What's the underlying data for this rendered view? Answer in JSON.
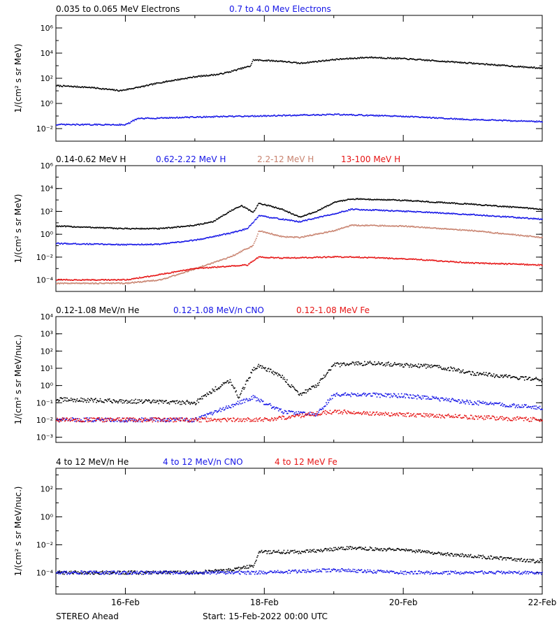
{
  "colors": {
    "black": "#000000",
    "blue": "#1414e6",
    "tan": "#c8826e",
    "red": "#e61414"
  },
  "footer": {
    "left": "STEREO Ahead",
    "center": "Start: 15-Feb-2022 00:00 UTC"
  },
  "x_axis": {
    "range_days": [
      "2022-02-15",
      "2022-02-22"
    ],
    "ticks": [
      {
        "date": "2022-02-16",
        "label": "16-Feb"
      },
      {
        "date": "2022-02-18",
        "label": "18-Feb"
      },
      {
        "date": "2022-02-20",
        "label": "20-Feb"
      },
      {
        "date": "2022-02-22",
        "label": "22-Feb"
      }
    ]
  },
  "chart_data": [
    {
      "type": "scatter",
      "yscale": "log",
      "ylabel": "1/(cm² s sr MeV)",
      "ylim": [
        0.001,
        10000000
      ],
      "yticks": [
        {
          "value": 0.01,
          "label": "10⁻²"
        },
        {
          "value": 1,
          "label": "10⁰"
        },
        {
          "value": 100,
          "label": "10²"
        },
        {
          "value": 10000,
          "label": "10⁴"
        },
        {
          "value": 1000000,
          "label": "10⁶"
        }
      ],
      "series": [
        {
          "name": "0.035 to 0.065 MeV Electrons",
          "color": "black",
          "points": [
            [
              "2022-02-15",
              25
            ],
            [
              "2022-02-15T12:00",
              18
            ],
            [
              "2022-02-15T22:00",
              10
            ],
            [
              "2022-02-16T06:00",
              22
            ],
            [
              "2022-02-16T12:00",
              45
            ],
            [
              "2022-02-17T00:00",
              130
            ],
            [
              "2022-02-17T08:00",
              200
            ],
            [
              "2022-02-17T12:00",
              320
            ],
            [
              "2022-02-17T16:00",
              600
            ],
            [
              "2022-02-17T19:00",
              900
            ],
            [
              "2022-02-17T20:00",
              2800
            ],
            [
              "2022-02-18T06:00",
              2200
            ],
            [
              "2022-02-18T12:00",
              1500
            ],
            [
              "2022-02-19T00:00",
              3000
            ],
            [
              "2022-02-19T12:00",
              4500
            ],
            [
              "2022-02-20T00:00",
              3500
            ],
            [
              "2022-02-21T00:00",
              1500
            ],
            [
              "2022-02-22T00:00",
              600
            ]
          ]
        },
        {
          "name": "0.7 to 4.0 Mev Electrons",
          "color": "blue",
          "points": [
            [
              "2022-02-15",
              0.02
            ],
            [
              "2022-02-16T00:00",
              0.02
            ],
            [
              "2022-02-16T04:00",
              0.06
            ],
            [
              "2022-02-17T00:00",
              0.08
            ],
            [
              "2022-02-18T00:00",
              0.1
            ],
            [
              "2022-02-19T00:00",
              0.13
            ],
            [
              "2022-02-20T00:00",
              0.09
            ],
            [
              "2022-02-21T00:00",
              0.05
            ],
            [
              "2022-02-22T00:00",
              0.035
            ]
          ]
        }
      ]
    },
    {
      "type": "scatter",
      "yscale": "log",
      "ylabel": "1/(cm² s sr MeV)",
      "ylim": [
        1e-05,
        1000000
      ],
      "yticks": [
        {
          "value": 0.0001,
          "label": "10⁻⁴"
        },
        {
          "value": 0.01,
          "label": "10⁻²"
        },
        {
          "value": 1,
          "label": "10⁰"
        },
        {
          "value": 100,
          "label": "10²"
        },
        {
          "value": 10000,
          "label": "10⁴"
        },
        {
          "value": 1000000,
          "label": "10⁶"
        }
      ],
      "series": [
        {
          "name": "0.14-0.62 MeV H",
          "color": "black",
          "points": [
            [
              "2022-02-15",
              5
            ],
            [
              "2022-02-16T00:00",
              3
            ],
            [
              "2022-02-16T12:00",
              3
            ],
            [
              "2022-02-17T00:00",
              6
            ],
            [
              "2022-02-17T06:00",
              12
            ],
            [
              "2022-02-17T12:00",
              100
            ],
            [
              "2022-02-17T16:00",
              300
            ],
            [
              "2022-02-17T20:00",
              80
            ],
            [
              "2022-02-17T22:00",
              500
            ],
            [
              "2022-02-18T06:00",
              150
            ],
            [
              "2022-02-18T12:00",
              30
            ],
            [
              "2022-02-18T18:00",
              100
            ],
            [
              "2022-02-19T00:00",
              600
            ],
            [
              "2022-02-19T06:00",
              1200
            ],
            [
              "2022-02-20T00:00",
              900
            ],
            [
              "2022-02-21T00:00",
              400
            ],
            [
              "2022-02-22T00:00",
              150
            ]
          ]
        },
        {
          "name": "0.62-2.22 MeV H",
          "color": "blue",
          "points": [
            [
              "2022-02-15",
              0.15
            ],
            [
              "2022-02-16T00:00",
              0.12
            ],
            [
              "2022-02-16T12:00",
              0.13
            ],
            [
              "2022-02-17T00:00",
              0.3
            ],
            [
              "2022-02-17T12:00",
              1.2
            ],
            [
              "2022-02-17T18:00",
              3
            ],
            [
              "2022-02-17T22:00",
              40
            ],
            [
              "2022-02-18T06:00",
              20
            ],
            [
              "2022-02-18T12:00",
              12
            ],
            [
              "2022-02-19T00:00",
              60
            ],
            [
              "2022-02-19T06:00",
              150
            ],
            [
              "2022-02-20T00:00",
              100
            ],
            [
              "2022-02-21T00:00",
              50
            ],
            [
              "2022-02-22T00:00",
              20
            ]
          ]
        },
        {
          "name": "2.2-12 MeV H",
          "color": "tan",
          "points": [
            [
              "2022-02-15",
              5e-05
            ],
            [
              "2022-02-16T00:00",
              5e-05
            ],
            [
              "2022-02-16T12:00",
              0.0001
            ],
            [
              "2022-02-16T18:00",
              0.0003
            ],
            [
              "2022-02-17T06:00",
              0.003
            ],
            [
              "2022-02-17T12:00",
              0.01
            ],
            [
              "2022-02-17T20:00",
              0.1
            ],
            [
              "2022-02-17T22:00",
              2
            ],
            [
              "2022-02-18T06:00",
              0.6
            ],
            [
              "2022-02-18T12:00",
              0.5
            ],
            [
              "2022-02-19T00:00",
              2
            ],
            [
              "2022-02-19T06:00",
              6
            ],
            [
              "2022-02-20T00:00",
              5
            ],
            [
              "2022-02-21T00:00",
              2
            ],
            [
              "2022-02-22T00:00",
              0.5
            ]
          ]
        },
        {
          "name": "13-100 MeV H",
          "color": "red",
          "points": [
            [
              "2022-02-15",
              0.0001
            ],
            [
              "2022-02-16T00:00",
              0.0001
            ],
            [
              "2022-02-16T12:00",
              0.0003
            ],
            [
              "2022-02-17T00:00",
              0.001
            ],
            [
              "2022-02-17T18:00",
              0.002
            ],
            [
              "2022-02-17T22:00",
              0.01
            ],
            [
              "2022-02-18T06:00",
              0.008
            ],
            [
              "2022-02-19T00:00",
              0.01
            ],
            [
              "2022-02-19T06:00",
              0.01
            ],
            [
              "2022-02-20T00:00",
              0.007
            ],
            [
              "2022-02-21T00:00",
              0.003
            ],
            [
              "2022-02-22T00:00",
              0.002
            ]
          ]
        }
      ]
    },
    {
      "type": "scatter",
      "yscale": "log",
      "ylabel": "1/(cm² s sr MeV/nuc.)",
      "ylim": [
        0.0005,
        10000
      ],
      "yticks": [
        {
          "value": 0.001,
          "label": "10⁻³"
        },
        {
          "value": 0.01,
          "label": "10⁻²"
        },
        {
          "value": 0.1,
          "label": "10⁻¹"
        },
        {
          "value": 1,
          "label": "10⁰"
        },
        {
          "value": 10,
          "label": "10¹"
        },
        {
          "value": 100,
          "label": "10²"
        },
        {
          "value": 1000,
          "label": "10³"
        },
        {
          "value": 10000,
          "label": "10⁴"
        }
      ],
      "series": [
        {
          "name": "0.12-1.08 MeV/n He",
          "color": "black",
          "points": [
            [
              "2022-02-15",
              0.15
            ],
            [
              "2022-02-16T00:00",
              0.12
            ],
            [
              "2022-02-17T00:00",
              0.1
            ],
            [
              "2022-02-17T06:00",
              0.5
            ],
            [
              "2022-02-17T12:00",
              2
            ],
            [
              "2022-02-17T15:00",
              0.2
            ],
            [
              "2022-02-17T20:00",
              8
            ],
            [
              "2022-02-17T22:00",
              15
            ],
            [
              "2022-02-18T06:00",
              3
            ],
            [
              "2022-02-18T12:00",
              0.3
            ],
            [
              "2022-02-18T18:00",
              1
            ],
            [
              "2022-02-19T00:00",
              15
            ],
            [
              "2022-02-19T12:00",
              20
            ],
            [
              "2022-02-20T00:00",
              15
            ],
            [
              "2022-02-20T12:00",
              12
            ],
            [
              "2022-02-21T00:00",
              5
            ],
            [
              "2022-02-22T00:00",
              2
            ]
          ]
        },
        {
          "name": "0.12-1.08 MeV/n CNO",
          "color": "blue",
          "points": [
            [
              "2022-02-15",
              0.01
            ],
            [
              "2022-02-17T00:00",
              0.01
            ],
            [
              "2022-02-17T20:00",
              0.2
            ],
            [
              "2022-02-18T06:00",
              0.03
            ],
            [
              "2022-02-18T18:00",
              0.02
            ],
            [
              "2022-02-19T00:00",
              0.3
            ],
            [
              "2022-02-20T00:00",
              0.25
            ],
            [
              "2022-02-21T00:00",
              0.1
            ],
            [
              "2022-02-22T00:00",
              0.05
            ]
          ]
        },
        {
          "name": "0.12-1.08 MeV Fe",
          "color": "red",
          "points": [
            [
              "2022-02-15",
              0.01
            ],
            [
              "2022-02-18T00:00",
              0.01
            ],
            [
              "2022-02-19T00:00",
              0.03
            ],
            [
              "2022-02-20T00:00",
              0.02
            ],
            [
              "2022-02-22T00:00",
              0.01
            ]
          ]
        }
      ]
    },
    {
      "type": "scatter",
      "yscale": "log",
      "ylabel": "1/(cm² s sr MeV/nuc.)",
      "ylim": [
        3e-06,
        3000
      ],
      "yticks": [
        {
          "value": 0.0001,
          "label": "10⁻⁴"
        },
        {
          "value": 0.01,
          "label": "10⁻²"
        },
        {
          "value": 1,
          "label": "10⁰"
        },
        {
          "value": 100,
          "label": "10²"
        }
      ],
      "series": [
        {
          "name": "4 to 12 MeV/n He",
          "color": "black",
          "points": [
            [
              "2022-02-15",
              0.0001
            ],
            [
              "2022-02-17T00:00",
              0.0001
            ],
            [
              "2022-02-17T12:00",
              0.00015
            ],
            [
              "2022-02-17T20:00",
              0.0003
            ],
            [
              "2022-02-17T22:00",
              0.003
            ],
            [
              "2022-02-18T12:00",
              0.003
            ],
            [
              "2022-02-19T06:00",
              0.006
            ],
            [
              "2022-02-20T00:00",
              0.004
            ],
            [
              "2022-02-21T00:00",
              0.0015
            ],
            [
              "2022-02-22T00:00",
              0.0006
            ]
          ]
        },
        {
          "name": "4 to 12 MeV/n CNO",
          "color": "blue",
          "points": [
            [
              "2022-02-15",
              0.0001
            ],
            [
              "2022-02-17T00:00",
              0.0001
            ],
            [
              "2022-02-18T00:00",
              0.0001
            ],
            [
              "2022-02-19T00:00",
              0.00015
            ],
            [
              "2022-02-20T00:00",
              0.0001
            ],
            [
              "2022-02-22T00:00",
              0.0001
            ]
          ]
        },
        {
          "name": "4 to 12 MeV Fe",
          "color": "red",
          "points": []
        }
      ]
    }
  ]
}
